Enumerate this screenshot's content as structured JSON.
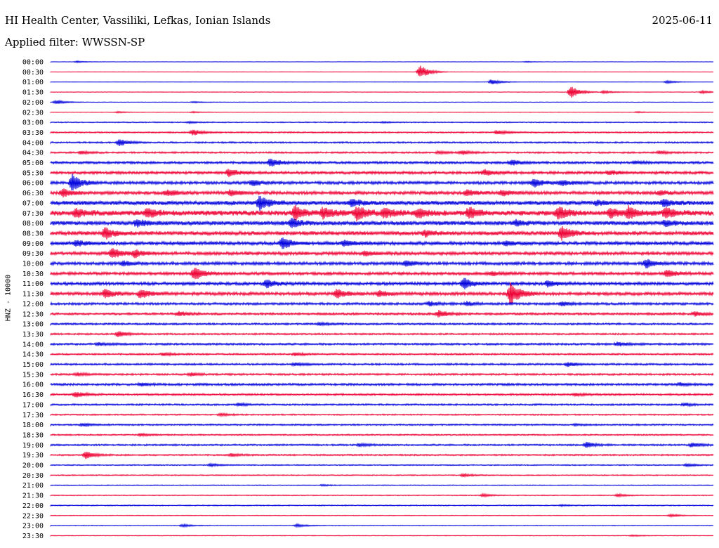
{
  "header": {
    "title": "HI Health Center, Vassiliki, Lefkas, Ionian Islands",
    "date": "2025-06-11",
    "filter": "Applied filter: WWSSN-SP"
  },
  "chart_data": {
    "type": "line",
    "ylabel": "HNZ - 10000",
    "colors": [
      "#0000dd",
      "#ee0033"
    ],
    "categories": [
      "00:00",
      "00:30",
      "01:00",
      "01:30",
      "02:00",
      "02:30",
      "03:00",
      "03:30",
      "04:00",
      "04:30",
      "05:00",
      "05:30",
      "06:00",
      "06:30",
      "07:00",
      "07:30",
      "08:00",
      "08:30",
      "09:00",
      "09:30",
      "10:00",
      "10:30",
      "11:00",
      "11:30",
      "12:00",
      "12:30",
      "13:00",
      "13:30",
      "14:00",
      "14:30",
      "15:00",
      "15:30",
      "16:00",
      "16:30",
      "17:00",
      "17:30",
      "18:00",
      "18:30",
      "19:00",
      "19:30",
      "20:00",
      "20:30",
      "21:00",
      "21:30",
      "22:00",
      "22:30",
      "23:00",
      "23:30"
    ],
    "noise_levels": [
      0.2,
      0.2,
      0.2,
      0.3,
      0.3,
      0.3,
      0.6,
      0.8,
      0.9,
      1.0,
      1.4,
      1.6,
      1.7,
      1.9,
      2.4,
      3.0,
      2.4,
      2.3,
      2.0,
      1.9,
      1.8,
      1.7,
      1.8,
      1.9,
      1.4,
      1.3,
      1.1,
      1.0,
      1.2,
      1.0,
      1.1,
      1.1,
      1.3,
      1.1,
      1.0,
      0.8,
      0.9,
      0.8,
      1.0,
      0.9,
      0.6,
      0.6,
      0.5,
      0.5,
      0.6,
      0.4,
      0.4,
      0.4
    ],
    "events": [
      [
        [
          110,
          1.2
        ],
        [
          750,
          0.8
        ]
      ],
      [
        [
          598,
          10
        ]
      ],
      [
        [
          700,
          4
        ],
        [
          950,
          2
        ]
      ],
      [
        [
          813,
          9
        ],
        [
          860,
          2
        ],
        [
          1000,
          2
        ]
      ],
      [
        [
          80,
          3
        ],
        [
          276,
          1
        ]
      ],
      [
        [
          168,
          1
        ],
        [
          275,
          1
        ],
        [
          908,
          1
        ]
      ],
      [
        [
          545,
          1
        ],
        [
          270,
          1
        ]
      ],
      [
        [
          275,
          4
        ],
        [
          708,
          3
        ]
      ],
      [
        [
          170,
          5
        ]
      ],
      [
        [
          115,
          2
        ],
        [
          625,
          2
        ],
        [
          658,
          3
        ],
        [
          940,
          2
        ]
      ],
      [
        [
          385,
          6
        ],
        [
          728,
          4
        ],
        [
          905,
          2
        ]
      ],
      [
        [
          326,
          5
        ],
        [
          690,
          4
        ],
        [
          868,
          3
        ]
      ],
      [
        [
          103,
          12
        ],
        [
          360,
          4
        ],
        [
          760,
          6
        ],
        [
          800,
          4
        ]
      ],
      [
        [
          90,
          6
        ],
        [
          238,
          4
        ],
        [
          328,
          4
        ],
        [
          665,
          4
        ],
        [
          715,
          4
        ],
        [
          940,
          3
        ]
      ],
      [
        [
          370,
          10
        ],
        [
          500,
          5
        ],
        [
          850,
          3
        ],
        [
          945,
          5
        ]
      ],
      [
        [
          108,
          6
        ],
        [
          210,
          6
        ],
        [
          420,
          9
        ],
        [
          460,
          8
        ],
        [
          508,
          10
        ],
        [
          547,
          8
        ],
        [
          595,
          6
        ],
        [
          668,
          8
        ],
        [
          795,
          9
        ],
        [
          870,
          7
        ],
        [
          895,
          8
        ],
        [
          948,
          7
        ]
      ],
      [
        [
          195,
          5
        ],
        [
          415,
          6
        ],
        [
          735,
          4
        ],
        [
          948,
          4
        ]
      ],
      [
        [
          150,
          8
        ],
        [
          606,
          4
        ],
        [
          800,
          10
        ]
      ],
      [
        [
          108,
          4
        ],
        [
          402,
          8
        ],
        [
          490,
          4
        ],
        [
          720,
          3
        ]
      ],
      [
        [
          160,
          7
        ],
        [
          192,
          5
        ],
        [
          520,
          3
        ]
      ],
      [
        [
          175,
          3
        ],
        [
          578,
          4
        ],
        [
          920,
          6
        ]
      ],
      [
        [
          277,
          9
        ],
        [
          700,
          3
        ],
        [
          950,
          5
        ]
      ],
      [
        [
          380,
          5
        ],
        [
          660,
          8
        ],
        [
          780,
          4
        ]
      ],
      [
        [
          150,
          6
        ],
        [
          200,
          6
        ],
        [
          480,
          6
        ],
        [
          540,
          4
        ],
        [
          727,
          16
        ]
      ],
      [
        [
          612,
          3
        ],
        [
          665,
          3
        ],
        [
          800,
          3
        ]
      ],
      [
        [
          255,
          3
        ],
        [
          625,
          5
        ],
        [
          990,
          3
        ]
      ],
      [
        [
          455,
          2
        ]
      ],
      [
        [
          168,
          4
        ]
      ],
      [
        [
          140,
          2
        ],
        [
          880,
          3
        ]
      ],
      [
        [
          233,
          2
        ],
        [
          420,
          2
        ]
      ],
      [
        [
          420,
          2
        ],
        [
          808,
          3
        ]
      ],
      [
        [
          110,
          2
        ],
        [
          272,
          2
        ]
      ],
      [
        [
          200,
          2
        ],
        [
          968,
          2
        ]
      ],
      [
        [
          108,
          4
        ],
        [
          820,
          2
        ]
      ],
      [
        [
          340,
          2
        ],
        [
          975,
          2
        ]
      ],
      [
        [
          314,
          2
        ]
      ],
      [
        [
          118,
          2
        ],
        [
          820,
          1
        ]
      ],
      [
        [
          200,
          2
        ]
      ],
      [
        [
          512,
          2
        ],
        [
          835,
          4
        ],
        [
          985,
          3
        ]
      ],
      [
        [
          122,
          5
        ],
        [
          330,
          2
        ]
      ],
      [
        [
          300,
          2
        ],
        [
          978,
          2
        ]
      ],
      [
        [
          660,
          2
        ]
      ],
      [
        [
          460,
          1
        ]
      ],
      [
        [
          688,
          2
        ],
        [
          880,
          2
        ]
      ],
      [
        [
          800,
          1
        ]
      ],
      [
        [
          955,
          2
        ]
      ],
      [
        [
          260,
          2
        ],
        [
          423,
          2
        ]
      ],
      [
        [
          900,
          1
        ]
      ]
    ]
  }
}
